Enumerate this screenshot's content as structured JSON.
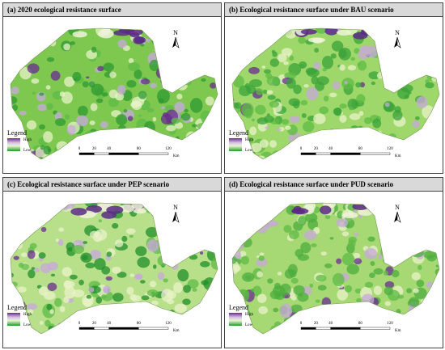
{
  "panels": [
    {
      "title": "(a) 2020 ecological resistance surface",
      "north": "N",
      "legend": {
        "title": "Legend",
        "high": "High",
        "low": "Low"
      },
      "scale": {
        "ticks": [
          0,
          20,
          40,
          80,
          120
        ],
        "unit": "Km"
      }
    },
    {
      "title": "(b) Ecological resistance surface under BAU scenario",
      "north": "N",
      "legend": {
        "title": "Legend",
        "high": "High",
        "low": "Low"
      },
      "scale": {
        "ticks": [
          0,
          20,
          40,
          80,
          120
        ],
        "unit": "Km"
      }
    },
    {
      "title": "(c) Ecological resistance surface under PEP scenario",
      "north": "N",
      "legend": {
        "title": "Legend",
        "high": "High",
        "low": "Low"
      },
      "scale": {
        "ticks": [
          0,
          20,
          40,
          80,
          120
        ],
        "unit": "Km"
      }
    },
    {
      "title": "(d) Ecological resistance surface under PUD scenario",
      "north": "N",
      "legend": {
        "title": "Legend",
        "high": "High",
        "low": "Low"
      },
      "scale": {
        "ticks": [
          0,
          20,
          40,
          80,
          120
        ],
        "unit": "Km"
      }
    }
  ]
}
